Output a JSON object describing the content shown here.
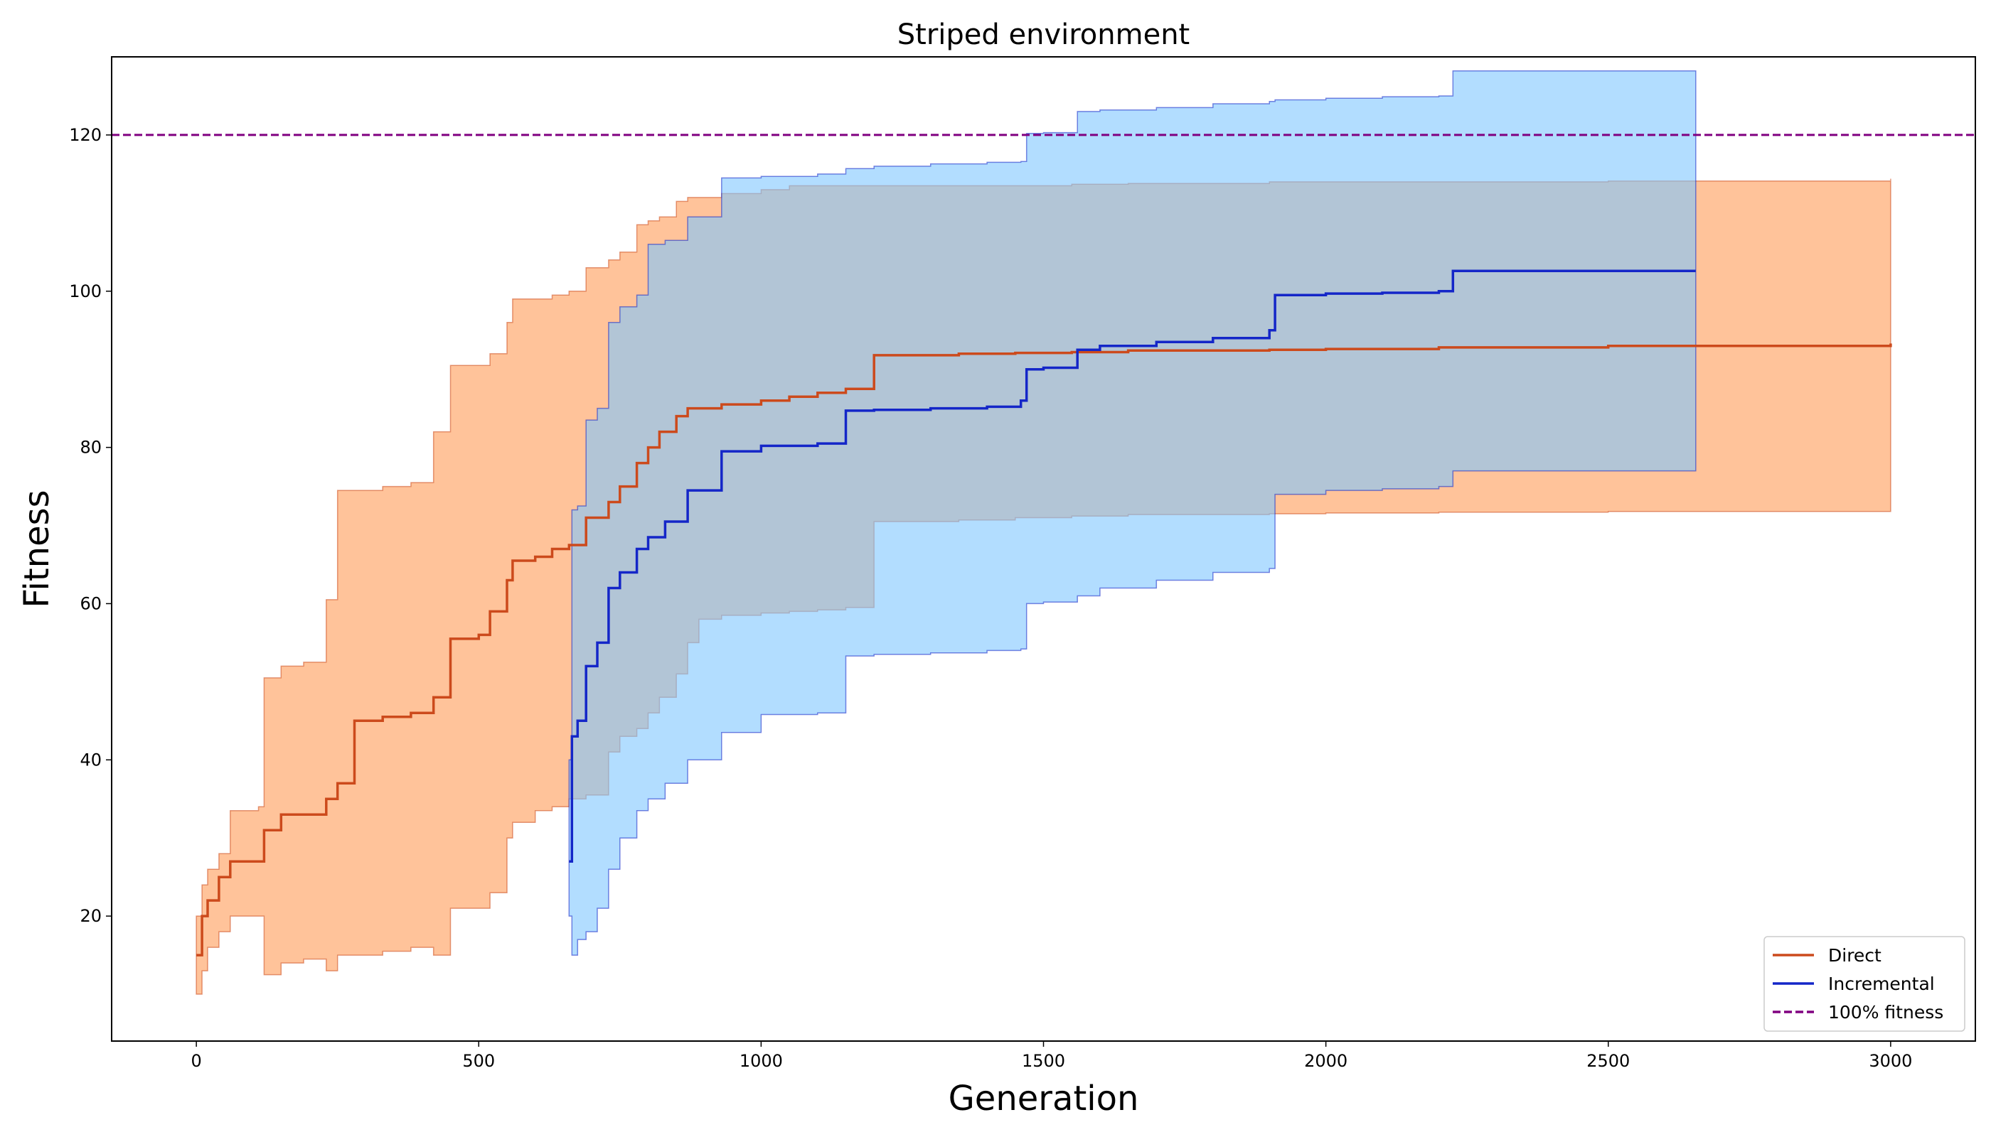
{
  "chart_data": {
    "type": "line",
    "title": "Striped environment",
    "xlabel": "Generation",
    "ylabel": "Fitness",
    "xlim": [
      -150,
      3150
    ],
    "ylim": [
      4,
      130
    ],
    "xticks": [
      0,
      500,
      1000,
      1500,
      2000,
      2500,
      3000
    ],
    "yticks": [
      20,
      40,
      60,
      80,
      100,
      120
    ],
    "grid": false,
    "legend_position": "bottom-right",
    "reference_line": {
      "name": "100% fitness",
      "y": 120,
      "color": "#800080",
      "style": "dashed"
    },
    "series": [
      {
        "name": "Direct",
        "color": "#cc4a1c",
        "band_color": "#ffa364",
        "x": [
          0,
          10,
          20,
          40,
          60,
          110,
          120,
          150,
          190,
          230,
          250,
          280,
          330,
          380,
          420,
          450,
          500,
          520,
          550,
          560,
          600,
          630,
          660,
          690,
          730,
          750,
          780,
          800,
          820,
          850,
          870,
          890,
          930,
          1000,
          1050,
          1100,
          1150,
          1200,
          1270,
          1350,
          1450,
          1550,
          1650,
          1900,
          2000,
          2200,
          2500,
          3000
        ],
        "mean": [
          15,
          20,
          22,
          25,
          27,
          27,
          31,
          33,
          33,
          35,
          37,
          45,
          45.5,
          46,
          48,
          55.5,
          56,
          59,
          63,
          65.5,
          66,
          67,
          67.5,
          71,
          73,
          75,
          78,
          80,
          82,
          84,
          85,
          85,
          85.5,
          86,
          86.5,
          87,
          87.5,
          91.8,
          91.8,
          92,
          92.1,
          92.2,
          92.4,
          92.5,
          92.6,
          92.8,
          93,
          93.3
        ],
        "upper": [
          20,
          24,
          26,
          28,
          33.5,
          34,
          50.5,
          52,
          52.5,
          60.5,
          74.5,
          74.5,
          75,
          75.5,
          82,
          90.5,
          90.5,
          92,
          96,
          99,
          99,
          99.5,
          100,
          103,
          104,
          105,
          108.5,
          109,
          109.5,
          111.5,
          112,
          112,
          112.5,
          113,
          113.5,
          113.5,
          113.5,
          113.5,
          113.5,
          113.5,
          113.5,
          113.7,
          113.8,
          114,
          114,
          114,
          114.1,
          114.4
        ],
        "lower": [
          10,
          13,
          16,
          18,
          20,
          20,
          12.5,
          14,
          14.5,
          13,
          15,
          15,
          15.5,
          16,
          15,
          21,
          21,
          23,
          30,
          32,
          33.5,
          34,
          35,
          35.5,
          41,
          43,
          44,
          46,
          48,
          51,
          55,
          58,
          58.5,
          58.8,
          59,
          59.2,
          59.5,
          70.5,
          70.5,
          70.7,
          71,
          71.2,
          71.4,
          71.5,
          71.6,
          71.7,
          71.8,
          72
        ]
      },
      {
        "name": "Incremental",
        "color": "#1426c8",
        "band_color": "#7ec6ff",
        "x": [
          660,
          665,
          675,
          690,
          710,
          730,
          750,
          780,
          800,
          830,
          870,
          930,
          1000,
          1100,
          1150,
          1200,
          1300,
          1400,
          1460,
          1470,
          1500,
          1560,
          1600,
          1700,
          1800,
          1900,
          1910,
          2000,
          2100,
          2200,
          2225,
          2400,
          2655
        ],
        "mean": [
          27,
          43,
          45,
          52,
          55,
          62,
          64,
          67,
          68.5,
          70.5,
          74.5,
          79.5,
          80.2,
          80.5,
          84.7,
          84.8,
          85,
          85.2,
          86,
          90,
          90.2,
          92.5,
          93,
          93.5,
          94,
          95,
          99.5,
          99.7,
          99.8,
          100,
          102.6,
          102.6,
          102.6
        ],
        "upper": [
          40,
          72,
          72.5,
          83.5,
          85,
          96,
          98,
          99.5,
          106,
          106.5,
          109.5,
          114.5,
          114.7,
          115,
          115.7,
          116,
          116.3,
          116.5,
          116.6,
          120.2,
          120.3,
          123,
          123.2,
          123.5,
          124,
          124.3,
          124.5,
          124.7,
          124.9,
          125,
          128.2,
          128.2,
          128.2
        ],
        "lower": [
          20,
          15,
          17,
          18,
          21,
          26,
          30,
          33.5,
          35,
          37,
          40,
          43.5,
          45.8,
          46,
          53.3,
          53.5,
          53.7,
          54,
          54.2,
          60,
          60.2,
          61,
          62,
          63,
          64,
          64.5,
          74,
          74.5,
          74.7,
          75,
          77,
          77,
          77
        ]
      }
    ]
  }
}
